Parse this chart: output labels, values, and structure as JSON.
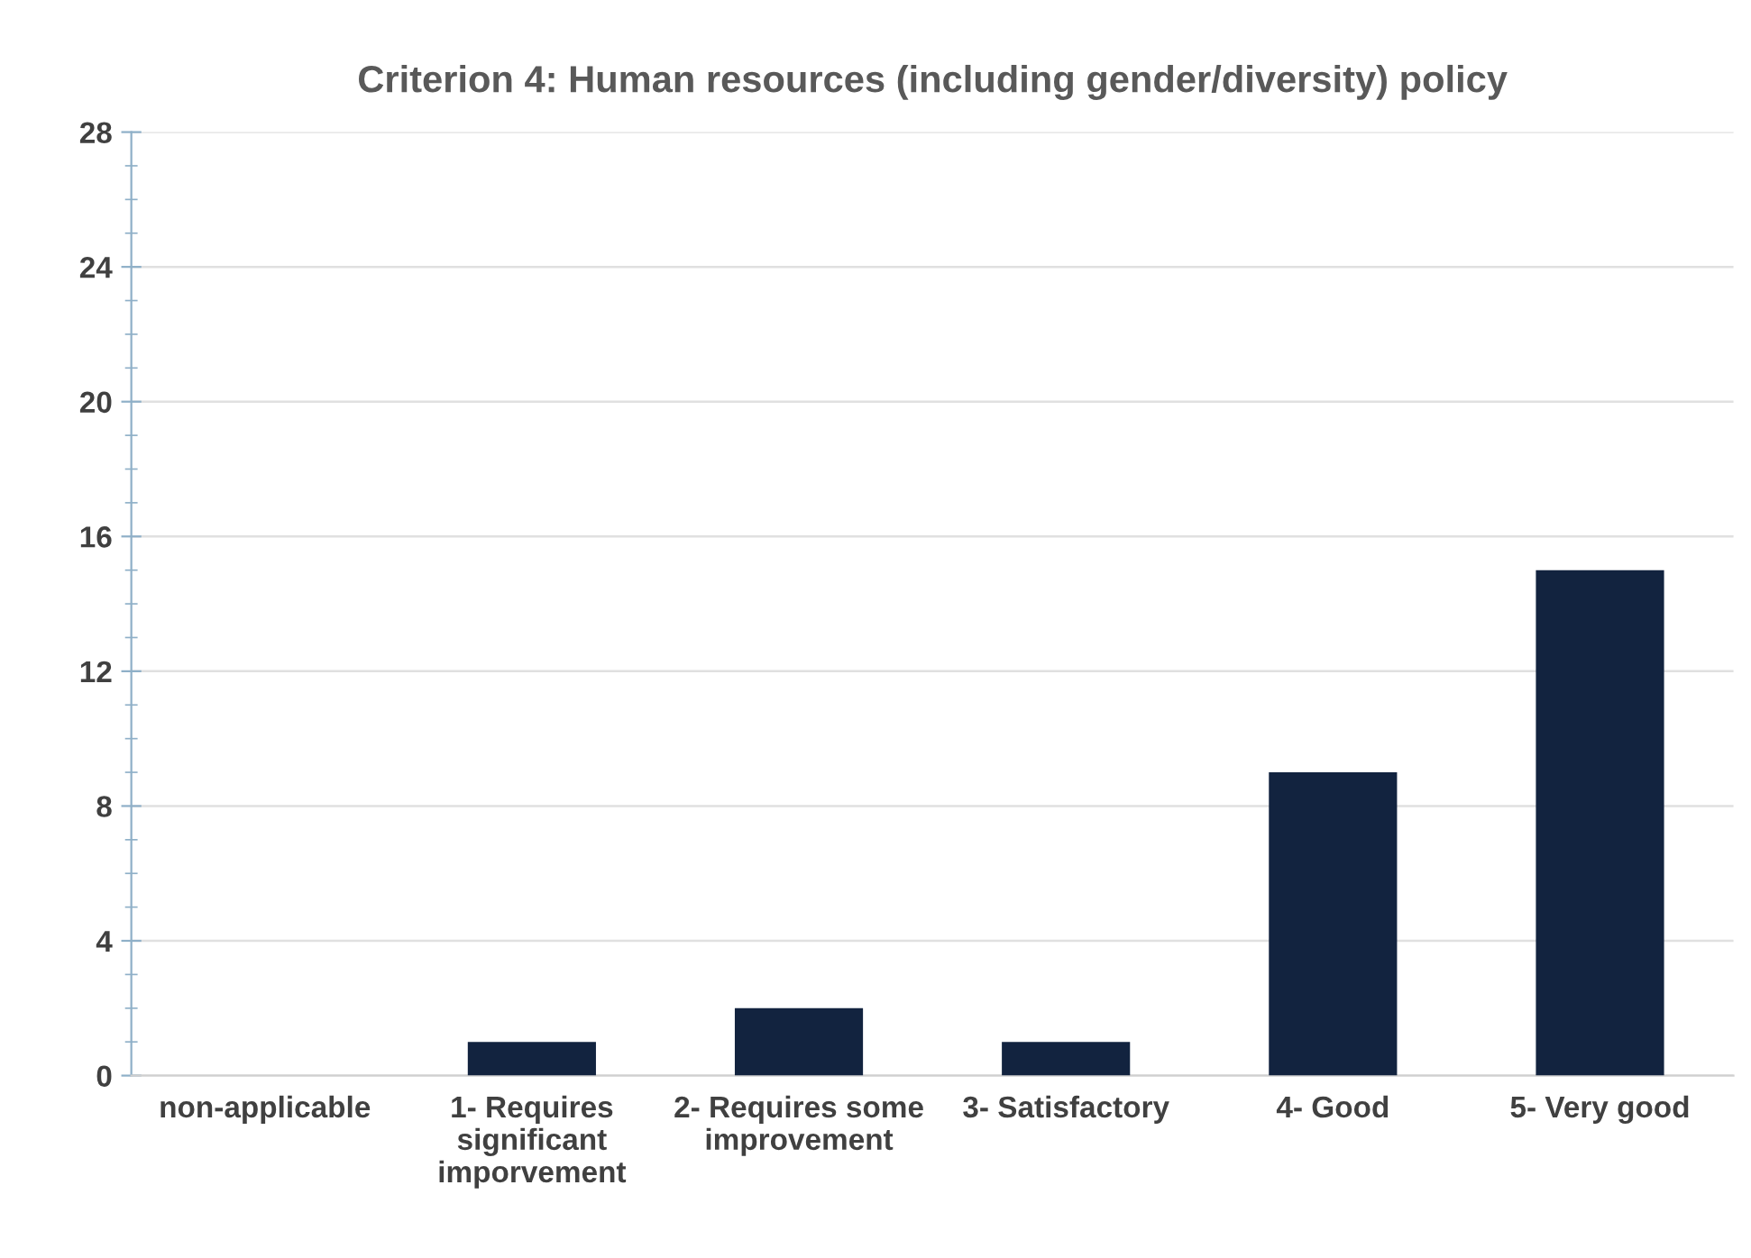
{
  "chart_data": {
    "type": "bar",
    "title": "Criterion 4: Human resources (including gender/diversity) policy",
    "categories": [
      "non-applicable",
      "1- Requires\nsignificant\nimporvement",
      "2- Requires some\nimprovement",
      "3- Satisfactory",
      "4- Good",
      "5- Very good"
    ],
    "values": [
      0,
      1,
      2,
      1,
      9,
      15
    ],
    "color": "#12233f",
    "ylim": [
      0,
      28
    ],
    "yticks": [
      0,
      4,
      8,
      12,
      16,
      20,
      24,
      28
    ],
    "grid": "y",
    "legend": false
  }
}
